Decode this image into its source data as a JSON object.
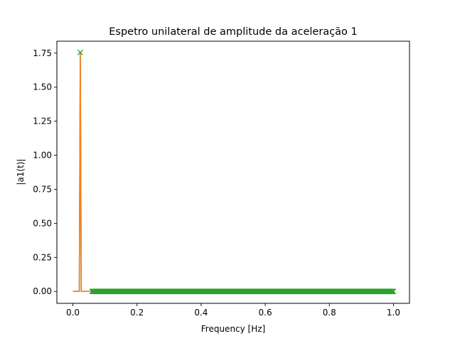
{
  "chart_data": {
    "type": "line",
    "title": "Espetro unilateral de amplitude da aceleração 1",
    "xlabel": "Frequency [Hz]",
    "ylabel": "|a1(t)|",
    "xlim": [
      -0.05,
      1.05
    ],
    "ylim": [
      -0.0875,
      1.8375
    ],
    "xticks": [
      0.0,
      0.2,
      0.4,
      0.6,
      0.8,
      1.0
    ],
    "xtick_labels": [
      "0.0",
      "0.2",
      "0.4",
      "0.6",
      "0.8",
      "1.0"
    ],
    "yticks": [
      0.0,
      0.25,
      0.5,
      0.75,
      1.0,
      1.25,
      1.5,
      1.75
    ],
    "ytick_labels": [
      "0.00",
      "0.25",
      "0.50",
      "0.75",
      "1.00",
      "1.25",
      "1.50",
      "1.75"
    ],
    "grid": false,
    "series": [
      {
        "kind": "line",
        "color": "#1f77b4",
        "x": [
          0.0,
          0.02,
          0.023,
          0.026,
          0.03,
          0.06
        ],
        "y": [
          0.0,
          0.0,
          1.75,
          0.0,
          0.0,
          0.0
        ]
      },
      {
        "kind": "line",
        "color": "#ff7f0e",
        "x": [
          0.0,
          0.02,
          0.023,
          0.026,
          0.03,
          0.06
        ],
        "y": [
          0.0,
          0.0,
          1.75,
          0.0,
          0.0,
          0.0
        ]
      },
      {
        "kind": "markers",
        "marker": "x",
        "color": "#2ca02c",
        "peak": {
          "x": 0.023,
          "y": 1.755
        },
        "dense_range": {
          "x_start": 0.06,
          "x_end": 1.0,
          "y": 0.0
        }
      }
    ]
  }
}
